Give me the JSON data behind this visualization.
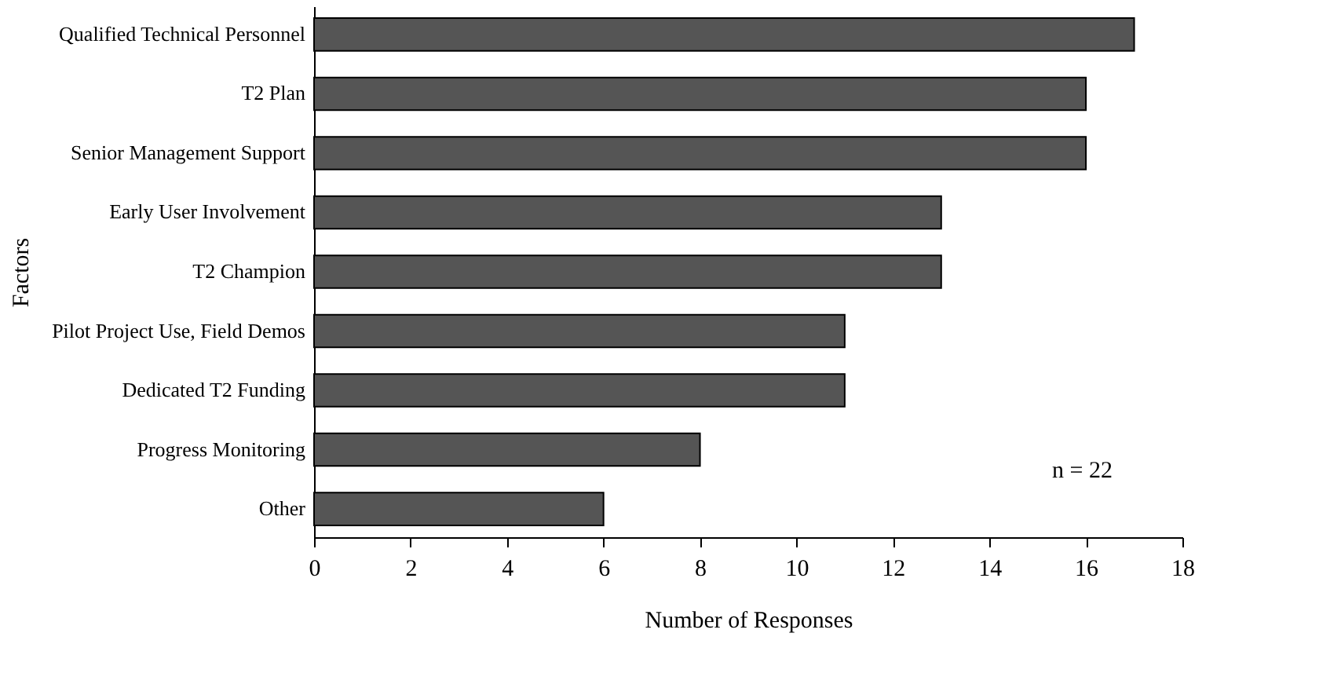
{
  "chart_data": {
    "type": "bar",
    "orientation": "horizontal",
    "xlabel": "Number of Responses",
    "ylabel": "Factors",
    "categories": [
      "Qualified Technical Personnel",
      "T2 Plan",
      "Senior Management Support",
      "Early User Involvement",
      "T2 Champion",
      "Pilot Project Use, Field Demos",
      "Dedicated T2 Funding",
      "Progress Monitoring",
      "Other"
    ],
    "values": [
      17,
      16,
      16,
      13,
      13,
      11,
      11,
      8,
      6
    ],
    "color": "#555555",
    "xlim": [
      0,
      18
    ],
    "xticks": [
      0,
      2,
      4,
      6,
      8,
      10,
      12,
      14,
      16,
      18
    ],
    "annotations": [
      "n = 22"
    ]
  }
}
